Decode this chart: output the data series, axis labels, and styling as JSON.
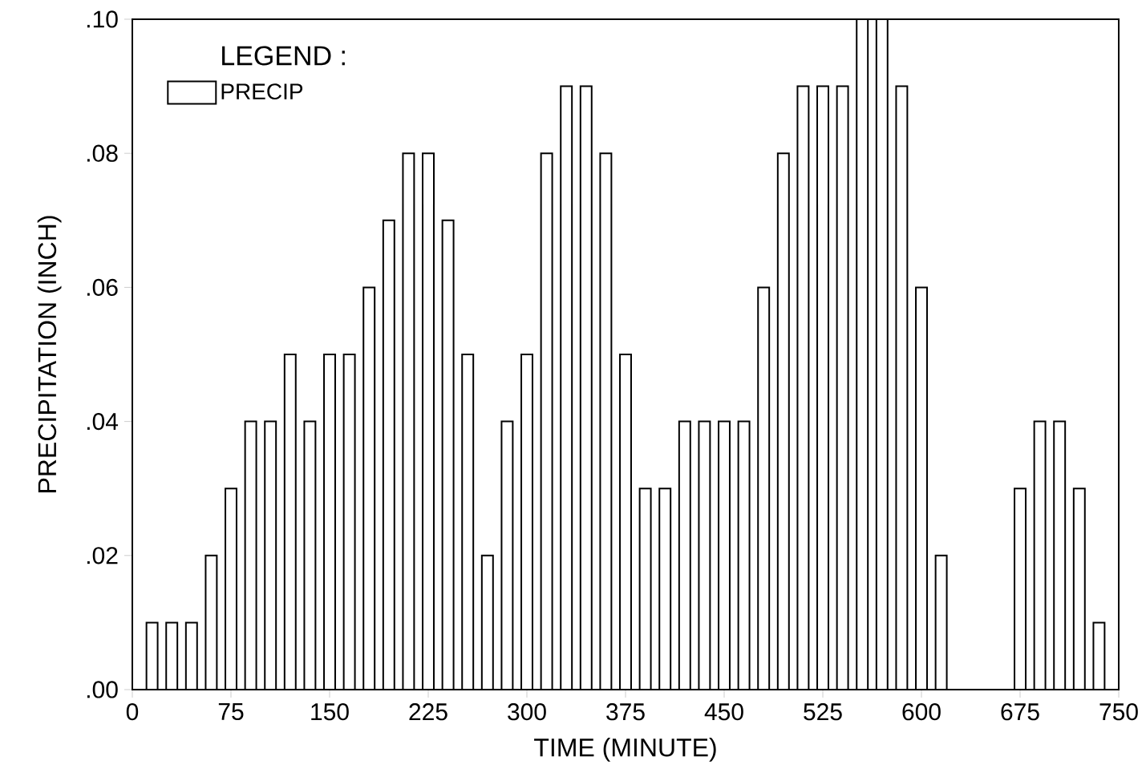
{
  "chart_data": {
    "type": "bar",
    "xlabel": "TIME (MINUTE)",
    "ylabel": "PRECIPITATION (INCH)",
    "legend_title": "LEGEND :",
    "legend": "top left",
    "x": [
      15,
      30,
      45,
      60,
      75,
      90,
      105,
      120,
      135,
      150,
      165,
      180,
      195,
      210,
      225,
      240,
      255,
      270,
      285,
      300,
      315,
      330,
      345,
      360,
      375,
      390,
      405,
      420,
      435,
      450,
      465,
      480,
      495,
      510,
      525,
      540,
      555,
      570,
      585,
      600,
      615,
      675,
      690,
      705,
      720,
      735
    ],
    "series": [
      {
        "name": "PRECIP",
        "color": "#000000",
        "values": [
          0.01,
          0.01,
          0.01,
          0.02,
          0.03,
          0.04,
          0.04,
          0.05,
          0.04,
          0.05,
          0.05,
          0.06,
          0.07,
          0.08,
          0.08,
          0.07,
          0.05,
          0.02,
          0.04,
          0.05,
          0.08,
          0.09,
          0.09,
          0.08,
          0.05,
          0.03,
          0.03,
          0.04,
          0.04,
          0.04,
          0.04,
          0.06,
          0.08,
          0.09,
          0.09,
          0.09,
          0.1,
          0.1,
          0.09,
          0.06,
          0.02,
          0.03,
          0.04,
          0.04,
          0.03,
          0.01
        ]
      }
    ],
    "xlim": [
      0,
      750
    ],
    "ylim": [
      0,
      0.1
    ],
    "xticks": [
      0,
      75,
      150,
      225,
      300,
      375,
      450,
      525,
      600,
      675,
      750
    ],
    "yticks": [
      {
        "value": 0,
        "label": ".00"
      },
      {
        "value": 0.02,
        "label": ".02"
      },
      {
        "value": 0.04,
        "label": ".04"
      },
      {
        "value": 0.06,
        "label": ".06"
      },
      {
        "value": 0.08,
        "label": ".08"
      },
      {
        "value": 0.1,
        "label": ".10"
      }
    ]
  }
}
